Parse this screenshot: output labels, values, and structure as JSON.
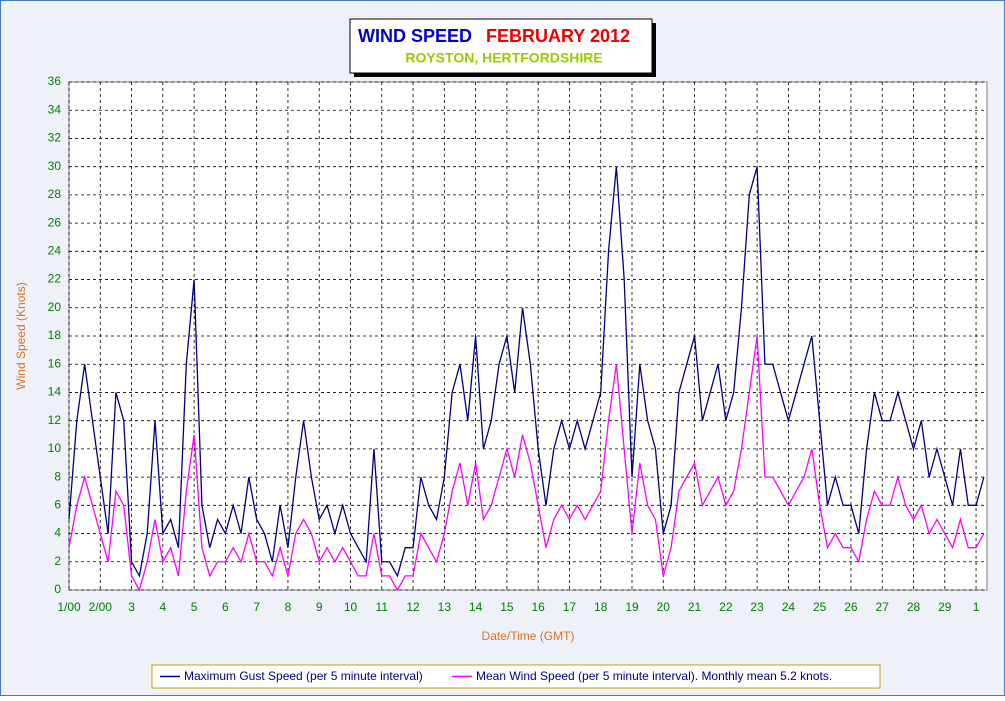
{
  "chart_data": {
    "type": "line",
    "title": "WIND SPEED",
    "title_month": "FEBRUARY 2012",
    "subtitle": "ROYSTON, HERTFORDSHIRE",
    "xlabel": "Date/Time (GMT)",
    "ylabel": "Wind Speed (Knots)",
    "xlim": [
      1,
      30.35
    ],
    "ylim": [
      0,
      36
    ],
    "xticks": [
      {
        "value": 1,
        "label": "1/00"
      },
      {
        "value": 2,
        "label": "2/00"
      },
      3,
      4,
      5,
      6,
      7,
      8,
      9,
      10,
      11,
      12,
      13,
      14,
      15,
      16,
      17,
      18,
      19,
      20,
      21,
      22,
      23,
      24,
      25,
      26,
      27,
      28,
      29,
      {
        "value": 30,
        "label": "1"
      }
    ],
    "yticks": [
      0,
      2,
      4,
      6,
      8,
      10,
      12,
      14,
      16,
      18,
      20,
      22,
      24,
      26,
      28,
      30,
      32,
      34,
      36
    ],
    "grid": true,
    "x": [
      1,
      1.25,
      1.5,
      1.75,
      2,
      2.25,
      2.5,
      2.75,
      3,
      3.25,
      3.5,
      3.75,
      4,
      4.25,
      4.5,
      4.75,
      5,
      5.25,
      5.5,
      5.75,
      6,
      6.25,
      6.5,
      6.75,
      7,
      7.25,
      7.5,
      7.75,
      8,
      8.25,
      8.5,
      8.75,
      9,
      9.25,
      9.5,
      9.75,
      10,
      10.25,
      10.5,
      10.75,
      11,
      11.25,
      11.5,
      11.75,
      12,
      12.25,
      12.5,
      12.75,
      13,
      13.25,
      13.5,
      13.75,
      14,
      14.25,
      14.5,
      14.75,
      15,
      15.25,
      15.5,
      15.75,
      16,
      16.25,
      16.5,
      16.75,
      17,
      17.25,
      17.5,
      17.75,
      18,
      18.25,
      18.5,
      18.75,
      19,
      19.25,
      19.5,
      19.75,
      20,
      20.25,
      20.5,
      20.75,
      21,
      21.25,
      21.5,
      21.75,
      22,
      22.25,
      22.5,
      22.75,
      23,
      23.25,
      23.5,
      23.75,
      24,
      24.25,
      24.5,
      24.75,
      25,
      25.25,
      25.5,
      25.75,
      26,
      26.25,
      26.5,
      26.75,
      27,
      27.25,
      27.5,
      27.75,
      28,
      28.25,
      28.5,
      28.75,
      29,
      29.25,
      29.5,
      29.75,
      30,
      30.25
    ],
    "series": [
      {
        "name": "Maximum Gust Speed (per 5 minute interval)",
        "color": "#000080",
        "values": [
          5,
          12,
          16,
          12,
          8,
          4,
          14,
          12,
          2,
          1,
          4,
          12,
          4,
          5,
          3,
          16,
          22,
          6,
          3,
          5,
          4,
          6,
          4,
          8,
          5,
          4,
          2,
          6,
          3,
          8,
          12,
          8,
          5,
          6,
          4,
          6,
          4,
          3,
          2,
          10,
          2,
          2,
          1,
          3,
          3,
          8,
          6,
          5,
          8,
          14,
          16,
          12,
          18,
          10,
          12,
          16,
          18,
          14,
          20,
          16,
          10,
          6,
          10,
          12,
          10,
          12,
          10,
          12,
          14,
          24,
          30,
          22,
          8,
          16,
          12,
          10,
          4,
          6,
          14,
          16,
          18,
          12,
          14,
          16,
          12,
          14,
          20,
          28,
          30,
          16,
          16,
          14,
          12,
          14,
          16,
          18,
          12,
          6,
          8,
          6,
          6,
          4,
          10,
          14,
          12,
          12,
          14,
          12,
          10,
          12,
          8,
          10,
          8,
          6,
          10,
          6,
          6,
          8
        ]
      },
      {
        "name": "Mean Wind Speed (per 5 minute interval). Monthly mean 5.2 knots.",
        "color": "#ff00ff",
        "values": [
          3,
          6,
          8,
          6,
          4,
          2,
          7,
          6,
          1,
          0,
          2,
          5,
          2,
          3,
          1,
          7,
          11,
          3,
          1,
          2,
          2,
          3,
          2,
          4,
          2,
          2,
          1,
          3,
          1,
          4,
          5,
          4,
          2,
          3,
          2,
          3,
          2,
          1,
          1,
          4,
          1,
          1,
          0,
          1,
          1,
          4,
          3,
          2,
          4,
          7,
          9,
          6,
          9,
          5,
          6,
          8,
          10,
          8,
          11,
          9,
          6,
          3,
          5,
          6,
          5,
          6,
          5,
          6,
          7,
          12,
          16,
          10,
          4,
          9,
          6,
          5,
          1,
          3,
          7,
          8,
          9,
          6,
          7,
          8,
          6,
          7,
          10,
          14,
          18,
          8,
          8,
          7,
          6,
          7,
          8,
          10,
          6,
          3,
          4,
          3,
          3,
          2,
          5,
          7,
          6,
          6,
          8,
          6,
          5,
          6,
          4,
          5,
          4,
          3,
          5,
          3,
          3,
          4
        ]
      }
    ]
  }
}
